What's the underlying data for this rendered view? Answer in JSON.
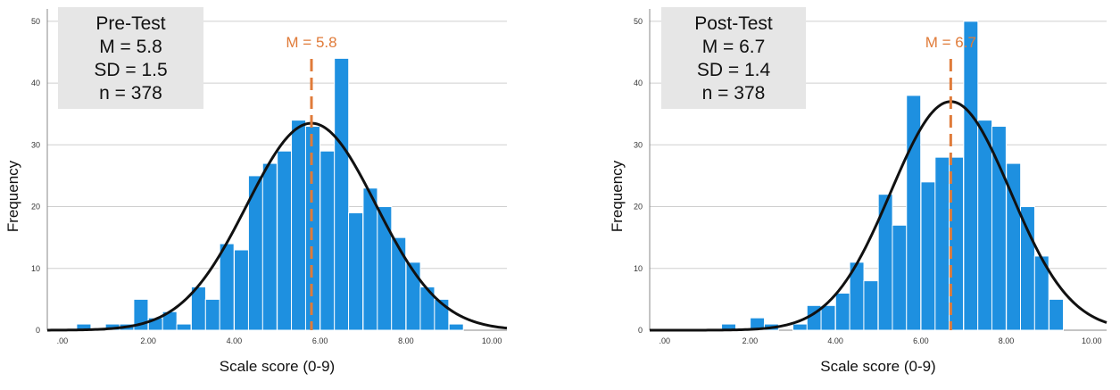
{
  "colors": {
    "bar": "#1e90e0",
    "bar_edge": "#ffffff",
    "curve": "#111111",
    "mean": "#e07b39",
    "grid": "#cfcfcf",
    "stat_box": "#e6e6e6"
  },
  "chart_data": [
    {
      "type": "bar",
      "panel": "pre",
      "stats": [
        "Pre-Test",
        "M = 5.8",
        "SD = 1.5",
        "n = 378"
      ],
      "mean_label": "M = 5.8",
      "mean_value": 5.8,
      "sd": 1.5,
      "n": 378,
      "curve_peak": 33.5,
      "xlabel": "Scale score (0-9)",
      "ylabel": "Frequency",
      "xlim": [
        -0.35,
        10.35
      ],
      "ylim": [
        0,
        52
      ],
      "x_ticks": [
        ".00",
        "2.00",
        "4.00",
        "6.00",
        "8.00",
        "10.00"
      ],
      "y_ticks": [
        "0",
        "10",
        "20",
        "30",
        "40",
        "50"
      ],
      "bin_width": 0.333,
      "bin_centers": [
        0.5,
        1.17,
        1.5,
        1.83,
        2.17,
        2.5,
        2.83,
        3.17,
        3.5,
        3.83,
        4.17,
        4.5,
        4.83,
        5.17,
        5.5,
        5.83,
        6.17,
        6.5,
        6.83,
        7.17,
        7.5,
        7.83,
        8.17,
        8.5,
        8.83,
        9.17
      ],
      "values": [
        1,
        1,
        1,
        5,
        2,
        3,
        1,
        7,
        5,
        14,
        13,
        25,
        27,
        29,
        34,
        33,
        29,
        44,
        19,
        23,
        20,
        15,
        11,
        7,
        5,
        1
      ]
    },
    {
      "type": "bar",
      "panel": "post",
      "stats": [
        "Post-Test",
        "M = 6.7",
        "SD = 1.4",
        "n = 378"
      ],
      "mean_label": "M = 6.7",
      "mean_value": 6.7,
      "sd": 1.4,
      "n": 378,
      "curve_peak": 37,
      "xlabel": "Scale score (0-9)",
      "ylabel": "Frequency",
      "xlim": [
        -0.35,
        10.35
      ],
      "ylim": [
        0,
        52
      ],
      "x_ticks": [
        ".00",
        "2.00",
        "4.00",
        "6.00",
        "8.00",
        "10.00"
      ],
      "y_ticks": [
        "0",
        "10",
        "20",
        "30",
        "40",
        "50"
      ],
      "bin_width": 0.333,
      "bin_centers": [
        1.5,
        2.17,
        2.5,
        3.17,
        3.5,
        3.83,
        4.17,
        4.5,
        4.83,
        5.17,
        5.5,
        5.83,
        6.17,
        6.5,
        6.83,
        7.17,
        7.5,
        7.83,
        8.17,
        8.5,
        8.83,
        9.17
      ],
      "values": [
        1,
        2,
        1,
        1,
        4,
        4,
        6,
        11,
        8,
        22,
        17,
        38,
        24,
        28,
        28,
        50,
        34,
        33,
        27,
        20,
        12,
        5
      ]
    }
  ]
}
